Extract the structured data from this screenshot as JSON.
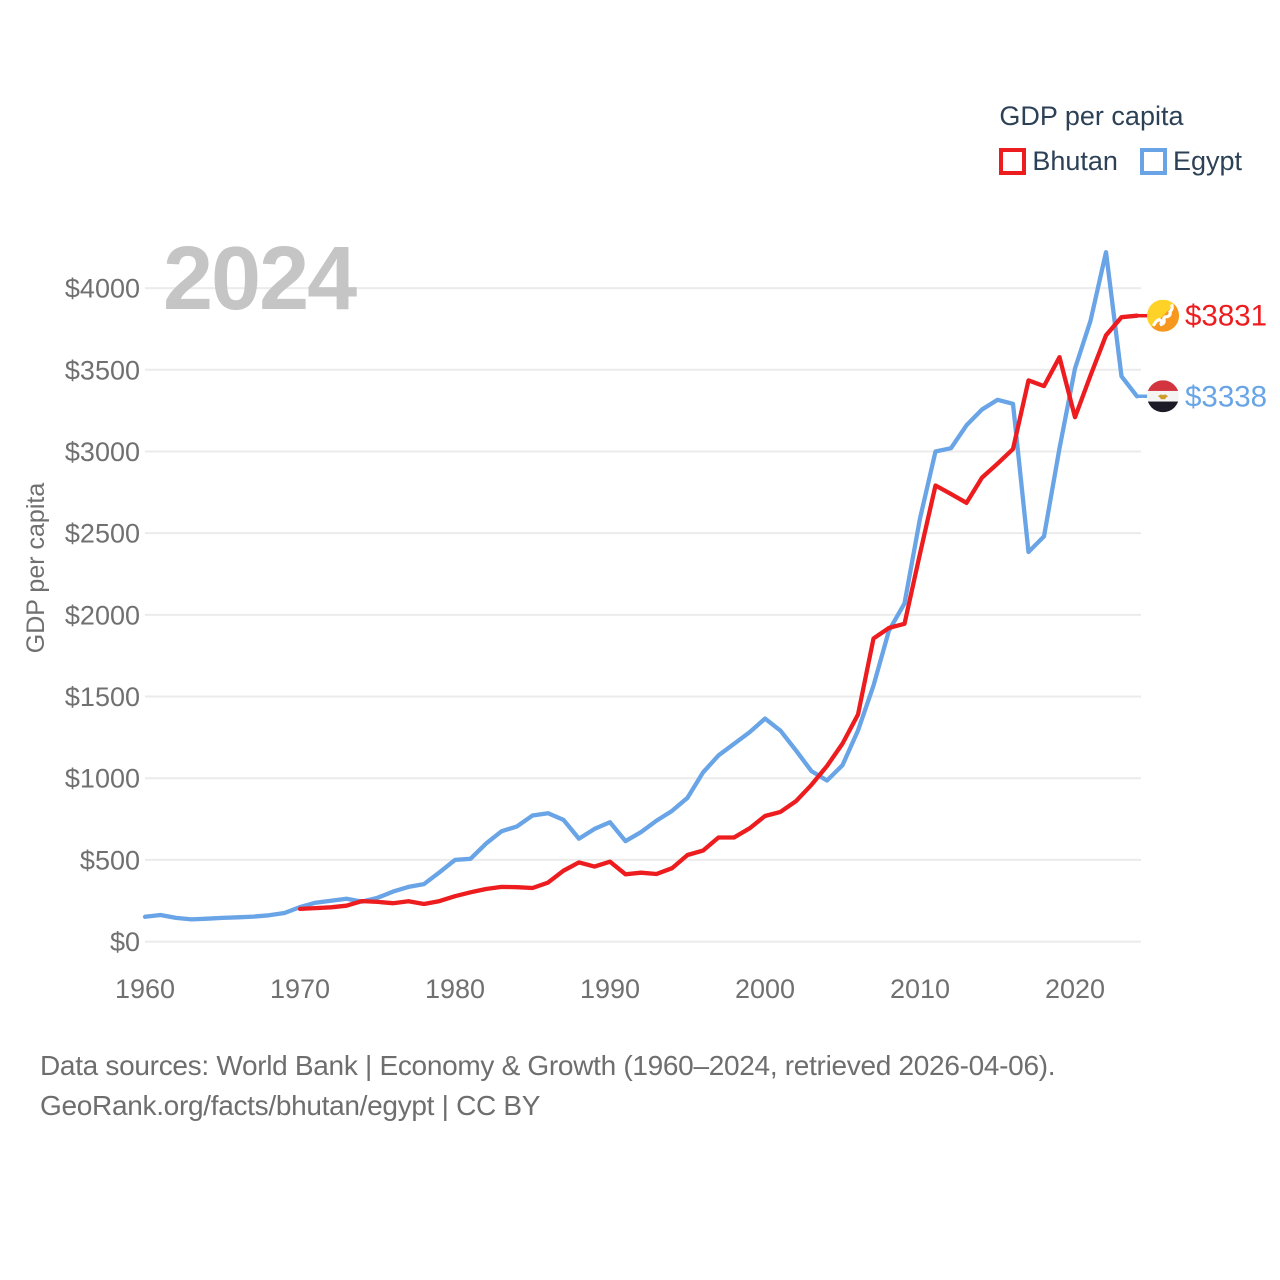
{
  "legend": {
    "title": "GDP per capita",
    "items": [
      {
        "label": "Bhutan",
        "color": "#ed1c1f"
      },
      {
        "label": "Egypt",
        "color": "#68a4e6"
      }
    ]
  },
  "watermark": "2024",
  "y_axis": {
    "title": "GDP per capita",
    "tick_prefix": "$"
  },
  "footer": {
    "line1": "Data sources: World Bank | Economy & Growth (1960–2024, retrieved 2026-04-06).",
    "line2": "GeoRank.org/facts/bhutan/egypt | CC BY"
  },
  "colors": {
    "bhutan_line": "#ed1c1f",
    "egypt_line": "#68a4e6",
    "gridline": "#ebebeb",
    "tick_text": "#707070",
    "watermark_text": "#c5c5c5",
    "legend_text": "#2d4156",
    "footer_text": "#6e6e6e"
  },
  "chart_data": {
    "type": "line",
    "title": "GDP per capita",
    "ylabel": "GDP per capita",
    "watermark": "2024",
    "x_ticks": [
      1960,
      1970,
      1980,
      1990,
      2000,
      2010,
      2020
    ],
    "y_ticks": [
      0,
      500,
      1000,
      1500,
      2000,
      2500,
      3000,
      3500,
      4000
    ],
    "y_tick_prefix": "$",
    "xlim": [
      1960,
      2024
    ],
    "ylim": [
      0,
      4230
    ],
    "grid": "horizontal",
    "legend_position": "top-right",
    "series": [
      {
        "name": "Egypt",
        "color": "#68a4e6",
        "flag": "egypt-flag",
        "start_year": 1960,
        "end_label": "$3338",
        "end_value": 3338,
        "values": [
          152,
          163,
          145,
          136,
          140,
          145,
          149,
          153,
          161,
          175,
          211,
          238,
          250,
          262,
          245,
          268,
          306,
          335,
          352,
          424,
          500,
          507,
          600,
          675,
          705,
          772,
          786,
          745,
          630,
          690,
          731,
          615,
          670,
          740,
          800,
          880,
          1035,
          1140,
          1210,
          1281,
          1365,
          1291,
          1170,
          1043,
          986,
          1080,
          1292,
          1567,
          1905,
          2070,
          2590,
          3000,
          3020,
          3160,
          3257,
          3316,
          3292,
          2385,
          2480,
          3020,
          3508,
          3800,
          4220,
          3460,
          3338
        ]
      },
      {
        "name": "Bhutan",
        "color": "#ed1c1f",
        "flag": "bhutan-flag",
        "start_year": 1970,
        "end_label": "$3831",
        "end_value": 3831,
        "values": [
          200,
          205,
          210,
          220,
          248,
          243,
          235,
          247,
          230,
          248,
          278,
          302,
          322,
          335,
          333,
          328,
          361,
          434,
          485,
          459,
          489,
          412,
          422,
          414,
          449,
          530,
          557,
          637,
          637,
          693,
          769,
          794,
          860,
          960,
          1075,
          1212,
          1390,
          1855,
          1920,
          1945,
          2375,
          2792,
          2740,
          2685,
          2840,
          2925,
          3015,
          3435,
          3400,
          3577,
          3210,
          3465,
          3711,
          3822,
          3831
        ]
      }
    ]
  }
}
